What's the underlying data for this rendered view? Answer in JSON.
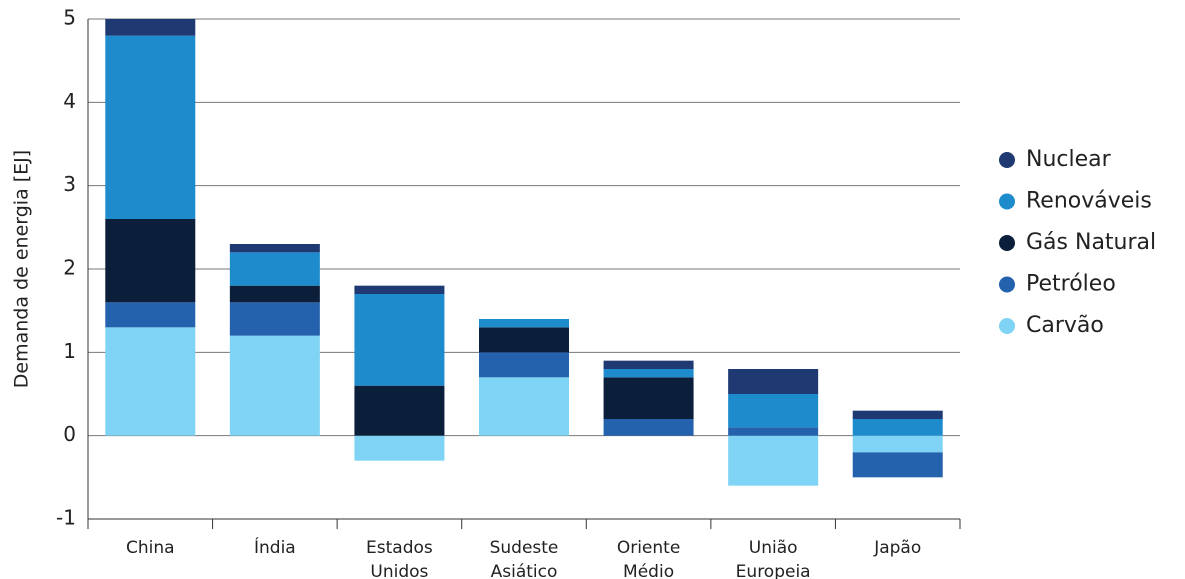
{
  "chart_data": {
    "type": "stacked_bar",
    "y_label": "Demanda de energia [EJ]",
    "categories": [
      "China",
      "Índia",
      "Estados Unidos",
      "Sudeste Asiático",
      "Oriente Médio",
      "União Europeia",
      "Japão"
    ],
    "series": [
      {
        "name": "Nuclear",
        "color": "#1f3a73",
        "values": [
          0.2,
          0.1,
          0.1,
          0,
          0.1,
          0.3,
          0.1
        ]
      },
      {
        "name": "Renováveis",
        "color": "#1e8bcd",
        "values": [
          2.2,
          0.4,
          1.1,
          0.1,
          0.1,
          0.4,
          0.2
        ]
      },
      {
        "name": "Gás Natural",
        "color": "#0b1f3a",
        "values": [
          1.0,
          0.2,
          0.6,
          0.3,
          0.5,
          0,
          0
        ]
      },
      {
        "name": "Petróleo",
        "color": "#2462ad",
        "values": [
          0.3,
          0.4,
          0,
          0.3,
          0.2,
          0.1,
          -0.3
        ]
      },
      {
        "name": "Carvão",
        "color": "#7fd3f5",
        "values": [
          1.3,
          1.2,
          -0.3,
          0.7,
          0,
          -0.6,
          -0.2
        ]
      }
    ],
    "ylim": [
      -1,
      5
    ],
    "yticks": [
      -1,
      0,
      1,
      2,
      3,
      4,
      5
    ],
    "grid": true,
    "legend": "right"
  }
}
